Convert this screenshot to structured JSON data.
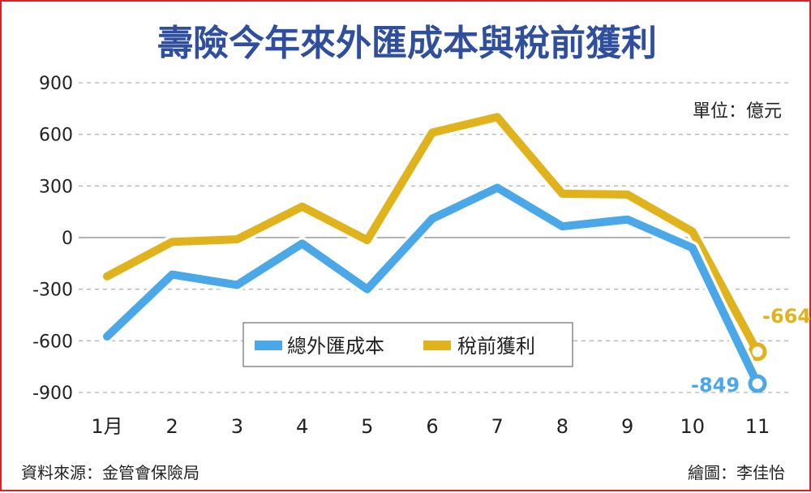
{
  "chart_data": {
    "type": "line",
    "title": "壽險今年來外匯成本與稅前獲利",
    "unit_label": "單位：億元",
    "categories": [
      "1月",
      "2",
      "3",
      "4",
      "5",
      "6",
      "7",
      "8",
      "9",
      "10",
      "11"
    ],
    "yticks": [
      "900",
      "600",
      "300",
      "0",
      "-300",
      "-600",
      "-900"
    ],
    "ylim": [
      -900,
      900
    ],
    "grid": true,
    "legend_position": "bottom-center",
    "series": [
      {
        "name": "總外匯成本",
        "color": "#4aa8e8",
        "values": [
          -575,
          -215,
          -275,
          -35,
          -300,
          110,
          290,
          65,
          105,
          -60,
          -849
        ],
        "end_label": "-849"
      },
      {
        "name": "稅前獲利",
        "color": "#e0b21c",
        "values": [
          -225,
          -25,
          -10,
          180,
          -15,
          610,
          700,
          255,
          250,
          35,
          -664
        ],
        "end_label": "-664"
      }
    ]
  },
  "source": "資料來源：金管會保險局",
  "credit": "繪圖：李佳怡",
  "colors": {
    "title": "#2f4f9e",
    "frame": "#d8232a",
    "grid": "#b5b5b5",
    "text": "#222222"
  }
}
